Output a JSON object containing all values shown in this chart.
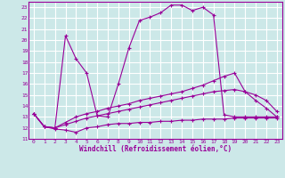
{
  "background_color": "#cce8e8",
  "grid_color": "#ffffff",
  "line_color": "#990099",
  "x_label": "Windchill (Refroidissement éolien,°C)",
  "x_ticks": [
    0,
    1,
    2,
    3,
    4,
    5,
    6,
    7,
    8,
    9,
    10,
    11,
    12,
    13,
    14,
    15,
    16,
    17,
    18,
    19,
    20,
    21,
    22,
    23
  ],
  "y_ticks": [
    11,
    12,
    13,
    14,
    15,
    16,
    17,
    18,
    19,
    20,
    21,
    22,
    23
  ],
  "xlim": [
    -0.5,
    23.5
  ],
  "ylim": [
    11,
    23.5
  ],
  "curves": [
    {
      "x": [
        0,
        1,
        2,
        3,
        4,
        5,
        6,
        7,
        8,
        9,
        10,
        11,
        12,
        13,
        14,
        15,
        16,
        17,
        18,
        19,
        20,
        21,
        22,
        23
      ],
      "y": [
        13.3,
        12.1,
        12.0,
        20.4,
        18.3,
        17.0,
        13.1,
        13.0,
        16.0,
        19.3,
        21.8,
        22.1,
        22.5,
        23.2,
        23.2,
        22.7,
        23.0,
        22.3,
        13.2,
        13.0,
        13.0,
        13.0,
        13.0,
        13.0
      ]
    },
    {
      "x": [
        0,
        1,
        2,
        3,
        4,
        5,
        6,
        7,
        8,
        9,
        10,
        11,
        12,
        13,
        14,
        15,
        16,
        17,
        18,
        19,
        20,
        21,
        22,
        23
      ],
      "y": [
        13.3,
        12.1,
        12.0,
        12.5,
        13.0,
        13.3,
        13.5,
        13.8,
        14.0,
        14.2,
        14.5,
        14.7,
        14.9,
        15.1,
        15.3,
        15.6,
        15.9,
        16.3,
        16.7,
        17.0,
        15.3,
        14.5,
        13.8,
        13.0
      ]
    },
    {
      "x": [
        0,
        1,
        2,
        3,
        4,
        5,
        6,
        7,
        8,
        9,
        10,
        11,
        12,
        13,
        14,
        15,
        16,
        17,
        18,
        19,
        20,
        21,
        22,
        23
      ],
      "y": [
        13.3,
        12.1,
        12.0,
        12.3,
        12.6,
        12.9,
        13.1,
        13.3,
        13.5,
        13.7,
        13.9,
        14.1,
        14.3,
        14.5,
        14.7,
        14.9,
        15.1,
        15.3,
        15.4,
        15.5,
        15.3,
        15.0,
        14.5,
        13.5
      ]
    },
    {
      "x": [
        0,
        1,
        2,
        3,
        4,
        5,
        6,
        7,
        8,
        9,
        10,
        11,
        12,
        13,
        14,
        15,
        16,
        17,
        18,
        19,
        20,
        21,
        22,
        23
      ],
      "y": [
        13.3,
        12.1,
        11.9,
        11.8,
        11.6,
        12.0,
        12.1,
        12.3,
        12.4,
        12.4,
        12.5,
        12.5,
        12.6,
        12.6,
        12.7,
        12.7,
        12.8,
        12.8,
        12.8,
        12.9,
        12.9,
        12.9,
        12.9,
        12.9
      ]
    }
  ]
}
